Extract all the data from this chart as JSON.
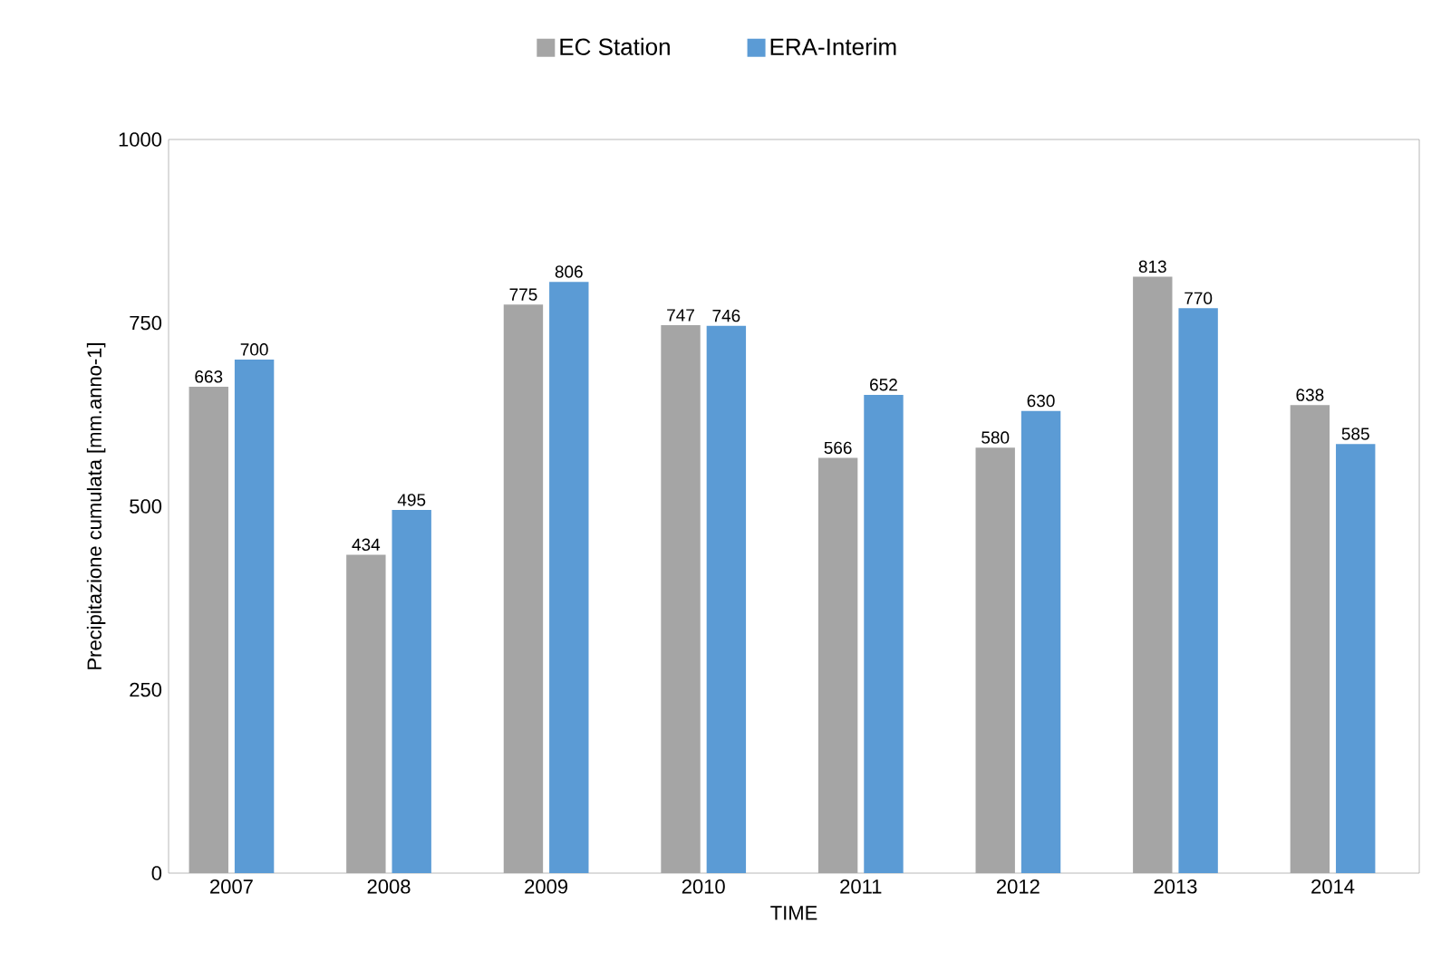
{
  "chart_data": {
    "type": "bar",
    "xlabel": "TIME",
    "ylabel": "Precipitazione cumulata [mm.anno-1]",
    "categories": [
      "2007",
      "2008",
      "2009",
      "2010",
      "2011",
      "2012",
      "2013",
      "2014"
    ],
    "series": [
      {
        "name": "EC Station",
        "color": "#a5a5a5",
        "values": [
          663,
          434,
          775,
          747,
          566,
          580,
          813,
          638
        ]
      },
      {
        "name": "ERA-Interim",
        "color": "#5b9bd5",
        "values": [
          700,
          495,
          806,
          746,
          652,
          630,
          770,
          585
        ]
      }
    ],
    "ylim": [
      0,
      1000
    ],
    "yticks": [
      0,
      250,
      500,
      750,
      1000
    ],
    "data_labels": true,
    "legend": "top",
    "grid": false
  }
}
